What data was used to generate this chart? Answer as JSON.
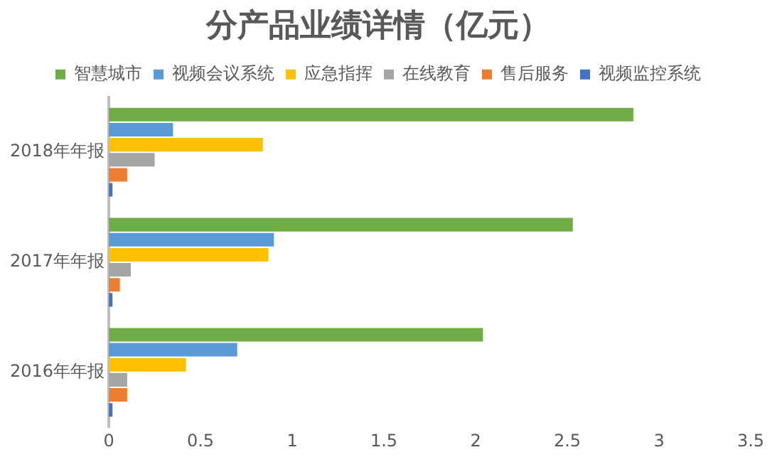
{
  "chart_data": {
    "type": "bar",
    "orientation": "horizontal",
    "title": "分产品业绩详情（亿元）",
    "categories": [
      "2018年年报",
      "2017年年报",
      "2016年年报"
    ],
    "series": [
      {
        "name": "智慧城市",
        "color": "#70ad47",
        "values": [
          2.86,
          2.53,
          2.04
        ]
      },
      {
        "name": "视频会议系统",
        "color": "#5b9bd5",
        "values": [
          0.35,
          0.9,
          0.7
        ]
      },
      {
        "name": "应急指挥",
        "color": "#ffc000",
        "values": [
          0.84,
          0.87,
          0.42
        ]
      },
      {
        "name": "在线教育",
        "color": "#a5a5a5",
        "values": [
          0.25,
          0.12,
          0.1
        ]
      },
      {
        "name": "售后服务",
        "color": "#ed7d31",
        "values": [
          0.1,
          0.06,
          0.1
        ]
      },
      {
        "name": "视频监控系统",
        "color": "#4472c4",
        "values": [
          0.02,
          0.02,
          0.02
        ]
      }
    ],
    "xlim": [
      0,
      3.5
    ],
    "xticks": [
      0,
      0.5,
      1,
      1.5,
      2,
      2.5,
      3,
      3.5
    ],
    "grid": false,
    "legend": "top"
  }
}
